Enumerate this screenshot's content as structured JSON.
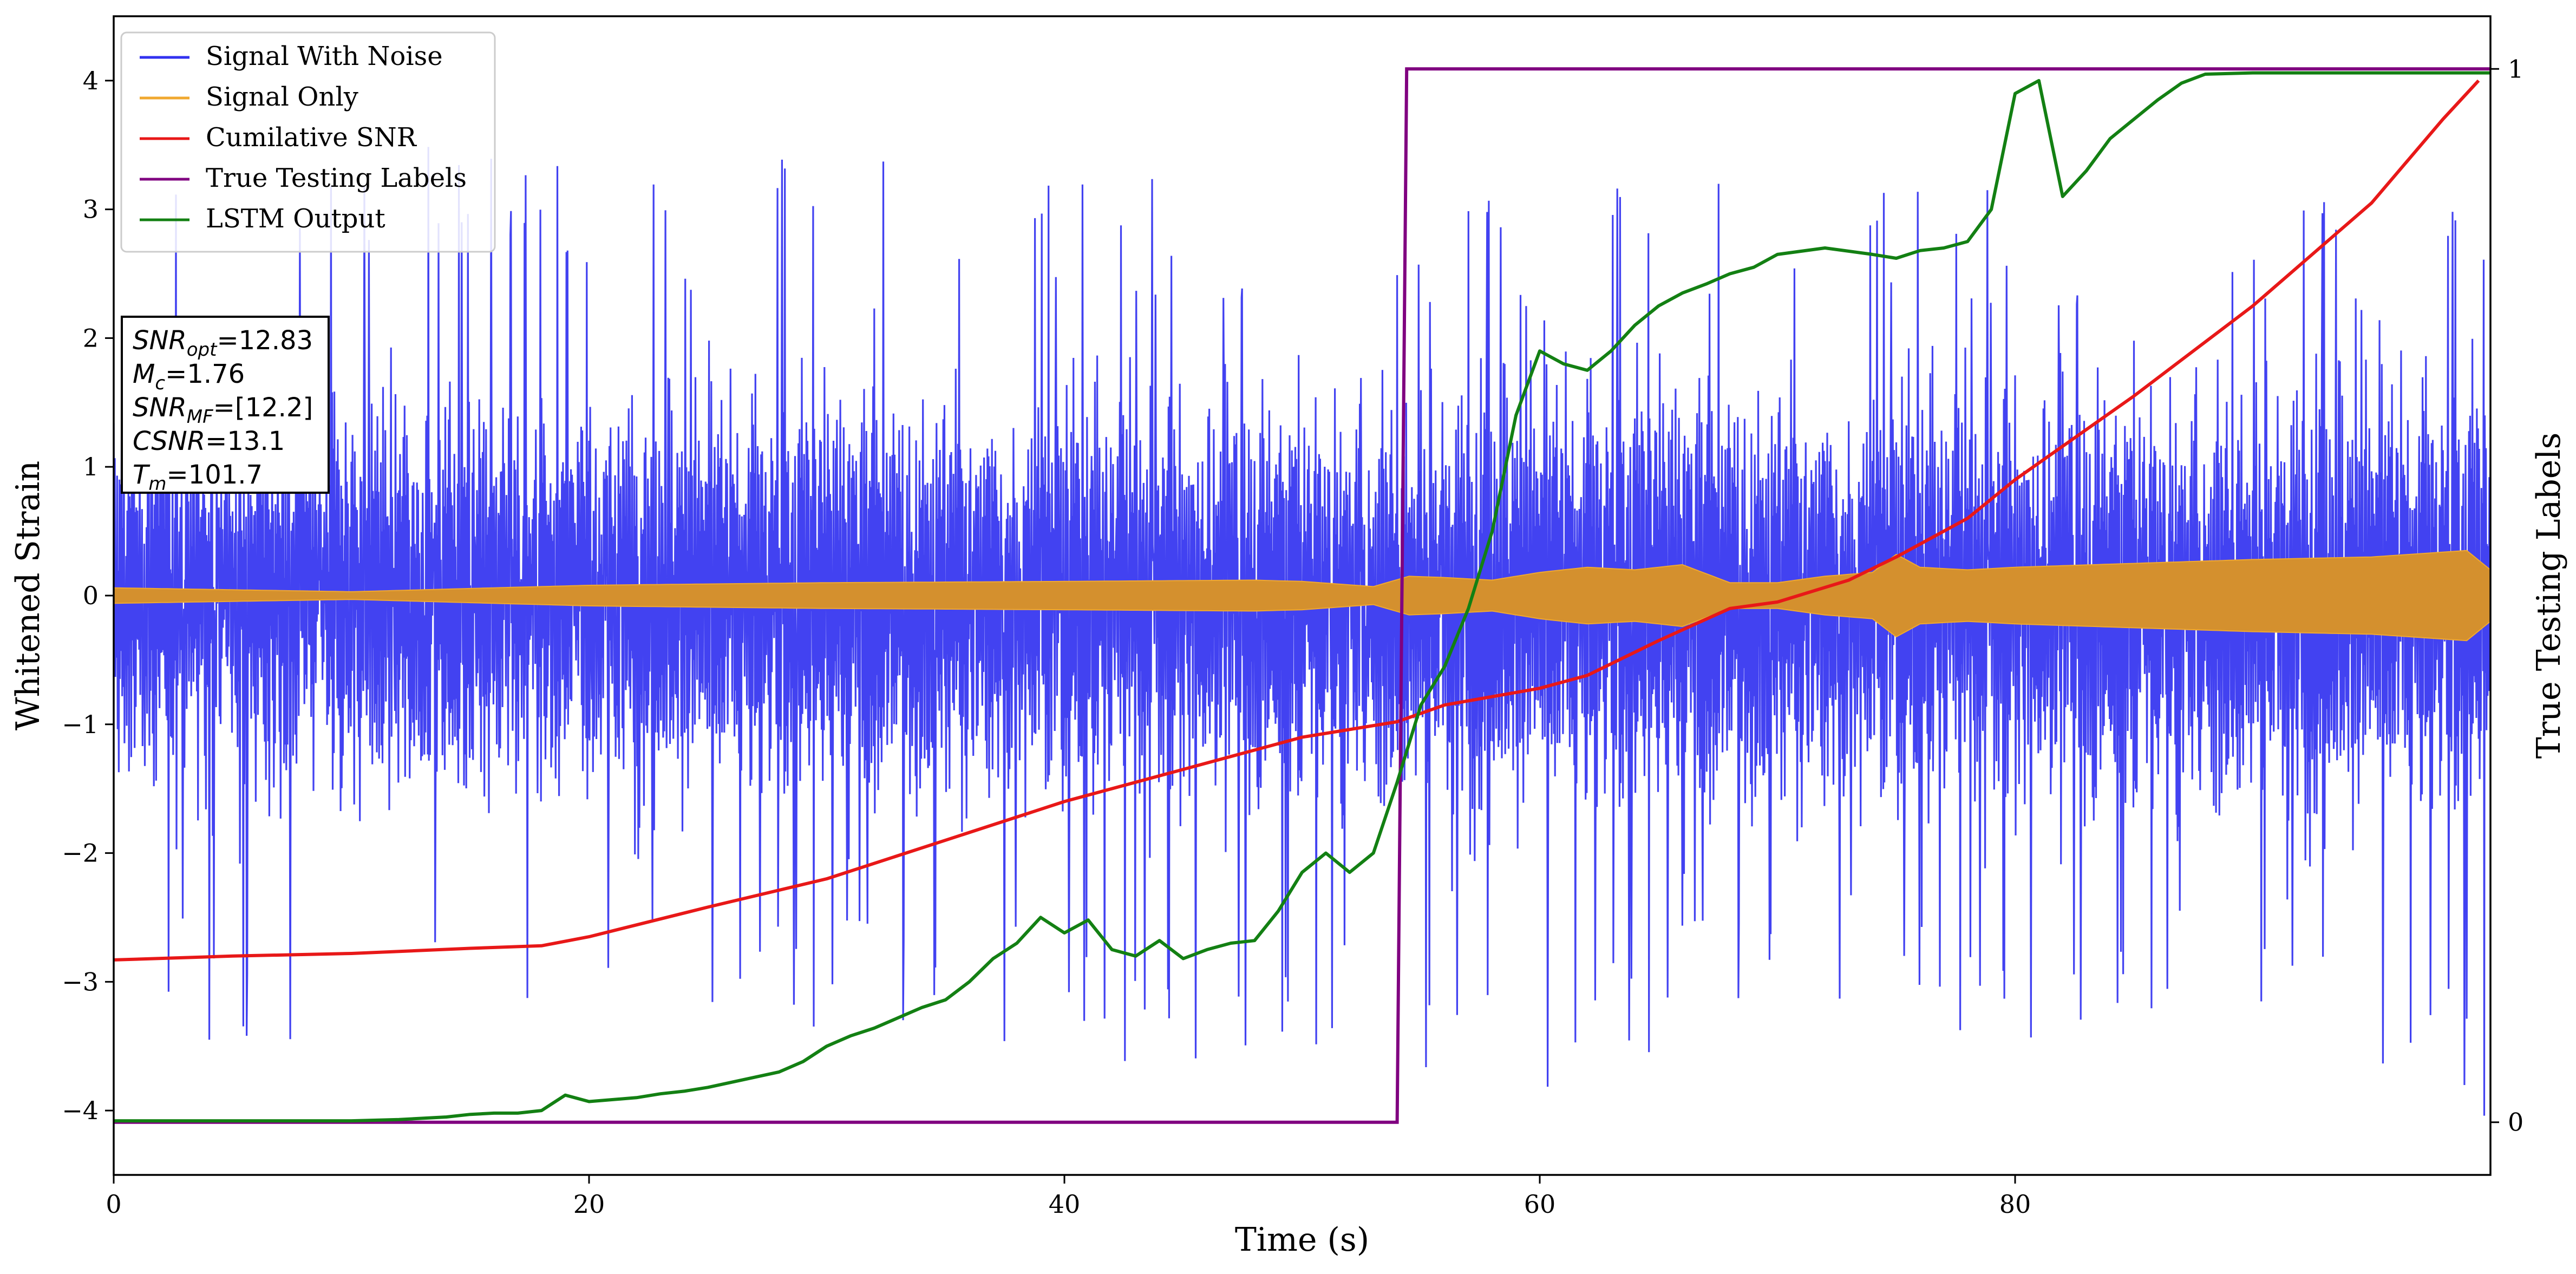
{
  "chart_data": {
    "type": "line",
    "xlabel": "Time (s)",
    "ylabel": "Whitened Strain",
    "y2label": "True Testing Labels",
    "xlim": [
      0,
      100
    ],
    "ylim": [
      -4.5,
      4.5
    ],
    "y2lim": [
      -0.05,
      1.05
    ],
    "xticks": [
      0,
      20,
      40,
      60,
      80
    ],
    "yticks": [
      -4,
      -3,
      -2,
      -1,
      0,
      1,
      2,
      3,
      4
    ],
    "y2ticks": [
      0,
      1
    ],
    "grid": false,
    "legend_position": "top-left",
    "series": [
      {
        "name": "Signal With Noise",
        "axis": "left",
        "color": "#3232f0",
        "noise": true,
        "envelope_x": [
          0,
          10,
          20,
          30,
          40,
          50,
          60,
          70,
          80,
          90,
          100
        ],
        "envelope_amp": [
          1.2,
          1.2,
          1.25,
          1.25,
          1.25,
          1.25,
          1.35,
          1.3,
          1.3,
          1.35,
          1.35
        ],
        "spike_max": [
          3.7,
          3.7,
          3.3,
          3.5,
          3.3,
          3.3,
          3.2,
          3.3,
          3.2,
          3.3,
          3.0
        ],
        "spike_min": [
          -3.2,
          -3.9,
          -3.0,
          -3.4,
          -3.7,
          -3.6,
          -3.9,
          -3.2,
          -3.5,
          -3.2,
          -4.1
        ]
      },
      {
        "name": "Signal Only",
        "axis": "left",
        "color": "#f0a830",
        "fill_color": "#d4902e",
        "x": [
          0,
          10,
          20,
          30,
          40,
          48,
          50,
          53,
          54.5,
          56,
          58,
          60,
          62,
          64,
          66,
          68,
          70,
          72,
          74,
          75,
          76,
          78,
          80,
          85,
          90,
          95,
          99,
          100
        ],
        "amplitude": [
          0.06,
          0.03,
          0.08,
          0.1,
          0.11,
          0.12,
          0.11,
          0.07,
          0.15,
          0.14,
          0.12,
          0.18,
          0.22,
          0.2,
          0.24,
          0.1,
          0.1,
          0.15,
          0.18,
          0.32,
          0.22,
          0.2,
          0.22,
          0.25,
          0.28,
          0.3,
          0.35,
          0.2
        ]
      },
      {
        "name": "Cumilative SNR",
        "axis": "left",
        "color": "#e81818",
        "x": [
          0,
          5,
          10,
          15,
          18,
          20,
          25,
          30,
          35,
          40,
          45,
          50,
          54,
          56,
          60,
          62,
          65,
          68,
          70,
          73,
          75,
          78,
          80,
          85,
          90,
          95,
          98,
          99.5
        ],
        "y": [
          -2.83,
          -2.8,
          -2.78,
          -2.74,
          -2.72,
          -2.65,
          -2.42,
          -2.2,
          -1.9,
          -1.6,
          -1.35,
          -1.1,
          -0.98,
          -0.85,
          -0.72,
          -0.62,
          -0.35,
          -0.1,
          -0.05,
          0.12,
          0.3,
          0.6,
          0.9,
          1.55,
          2.25,
          3.05,
          3.7,
          4.0
        ]
      },
      {
        "name": "True Testing Labels",
        "axis": "right",
        "color": "#800080",
        "x": [
          0,
          54.0,
          54.4,
          100
        ],
        "y": [
          0,
          0,
          1,
          1
        ]
      },
      {
        "name": "LSTM Output",
        "axis": "left",
        "color": "#138013",
        "x": [
          0,
          10,
          12,
          14,
          15,
          16,
          17,
          18,
          19,
          20,
          22,
          23,
          24,
          25,
          26,
          27,
          28,
          29,
          30,
          31,
          32,
          33,
          34,
          35,
          36,
          37,
          38,
          39,
          40,
          41,
          42,
          43,
          44,
          45,
          46,
          47,
          48,
          49,
          50,
          51,
          52,
          53,
          54,
          55,
          56,
          57,
          58,
          59,
          60,
          61,
          62,
          63,
          64,
          65,
          66,
          67,
          68,
          69,
          70,
          72,
          74,
          75,
          76,
          77,
          78,
          79,
          80,
          81,
          82,
          83,
          84,
          85,
          86,
          87,
          88,
          90,
          95,
          100
        ],
        "y": [
          -4.08,
          -4.08,
          -4.07,
          -4.05,
          -4.03,
          -4.02,
          -4.02,
          -4.0,
          -3.88,
          -3.93,
          -3.9,
          -3.87,
          -3.85,
          -3.82,
          -3.78,
          -3.74,
          -3.7,
          -3.62,
          -3.5,
          -3.42,
          -3.36,
          -3.28,
          -3.2,
          -3.14,
          -3.0,
          -2.82,
          -2.7,
          -2.5,
          -2.62,
          -2.52,
          -2.75,
          -2.8,
          -2.68,
          -2.82,
          -2.75,
          -2.7,
          -2.68,
          -2.45,
          -2.15,
          -2.0,
          -2.15,
          -2.0,
          -1.45,
          -0.85,
          -0.55,
          -0.1,
          0.5,
          1.4,
          1.9,
          1.8,
          1.75,
          1.9,
          2.1,
          2.25,
          2.35,
          2.42,
          2.5,
          2.55,
          2.65,
          2.7,
          2.65,
          2.62,
          2.68,
          2.7,
          2.75,
          3.0,
          3.9,
          4.0,
          3.1,
          3.3,
          3.55,
          3.7,
          3.85,
          3.98,
          4.05,
          4.06,
          4.06,
          4.06
        ]
      }
    ],
    "annotation": {
      "lines": [
        {
          "base": "SNR",
          "sub": "opt",
          "value": "=12.83"
        },
        {
          "base": "M",
          "sub": "c",
          "value": "=1.76"
        },
        {
          "base": "SNR",
          "sub": "MF",
          "value": "=[12.2]"
        },
        {
          "base": "CSNR",
          "sub": "",
          "value": "=13.1"
        },
        {
          "base": "T",
          "sub": "m",
          "value": "=101.7"
        }
      ]
    }
  }
}
